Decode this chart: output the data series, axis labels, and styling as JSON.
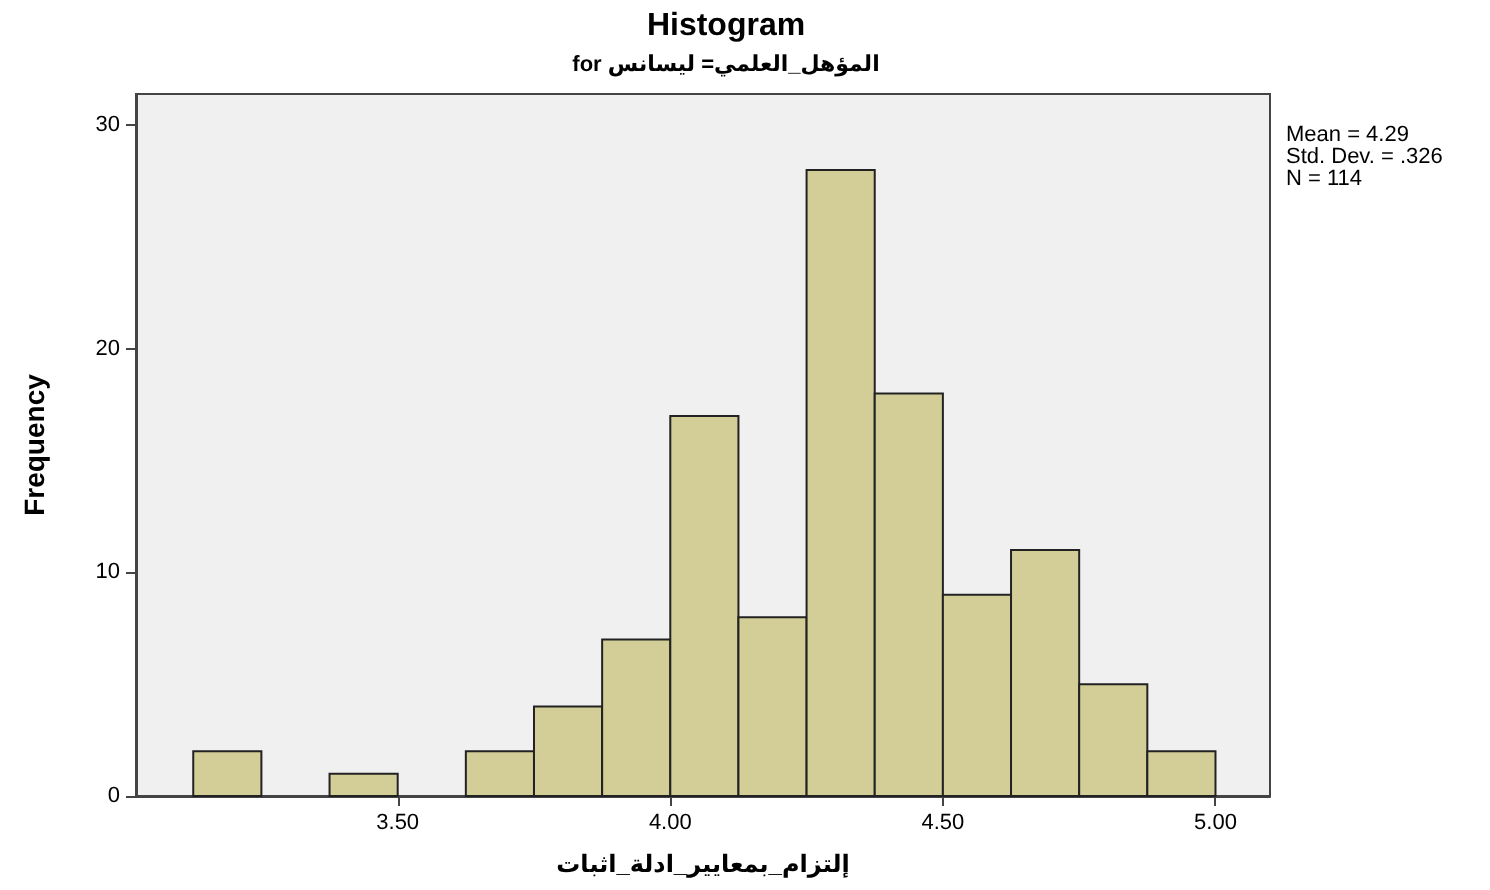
{
  "chart_data": {
    "type": "histogram",
    "title": "Histogram",
    "subtitle": "for المؤهل_العلمي= ليسانس",
    "xlabel": "إلتزام_بمعايير_ادلة_اثبات",
    "ylabel": "Frequency",
    "annotations": [
      "Mean = 4.29",
      "Std. Dev. = .326",
      "N = 114"
    ],
    "bins": [
      3.125,
      3.25,
      3.375,
      3.5,
      3.625,
      3.75,
      3.875,
      4.0,
      4.125,
      4.25,
      4.375,
      4.5,
      4.625,
      4.75,
      4.875,
      5.0
    ],
    "values": [
      2,
      0,
      1,
      0,
      2,
      4,
      7,
      17,
      8,
      28,
      18,
      9,
      11,
      5,
      2
    ],
    "color": "#d3ce97",
    "xlim": [
      3.02,
      5.1
    ],
    "xticks": [
      {
        "value": 3.5,
        "label": "3.50"
      },
      {
        "value": 4,
        "label": "4.00"
      },
      {
        "value": 4.5,
        "label": "4.50"
      },
      {
        "value": 5,
        "label": "5.00"
      }
    ],
    "ylim": [
      0,
      31.4
    ],
    "yticks": [
      0,
      10,
      20,
      30
    ],
    "grid": false
  }
}
